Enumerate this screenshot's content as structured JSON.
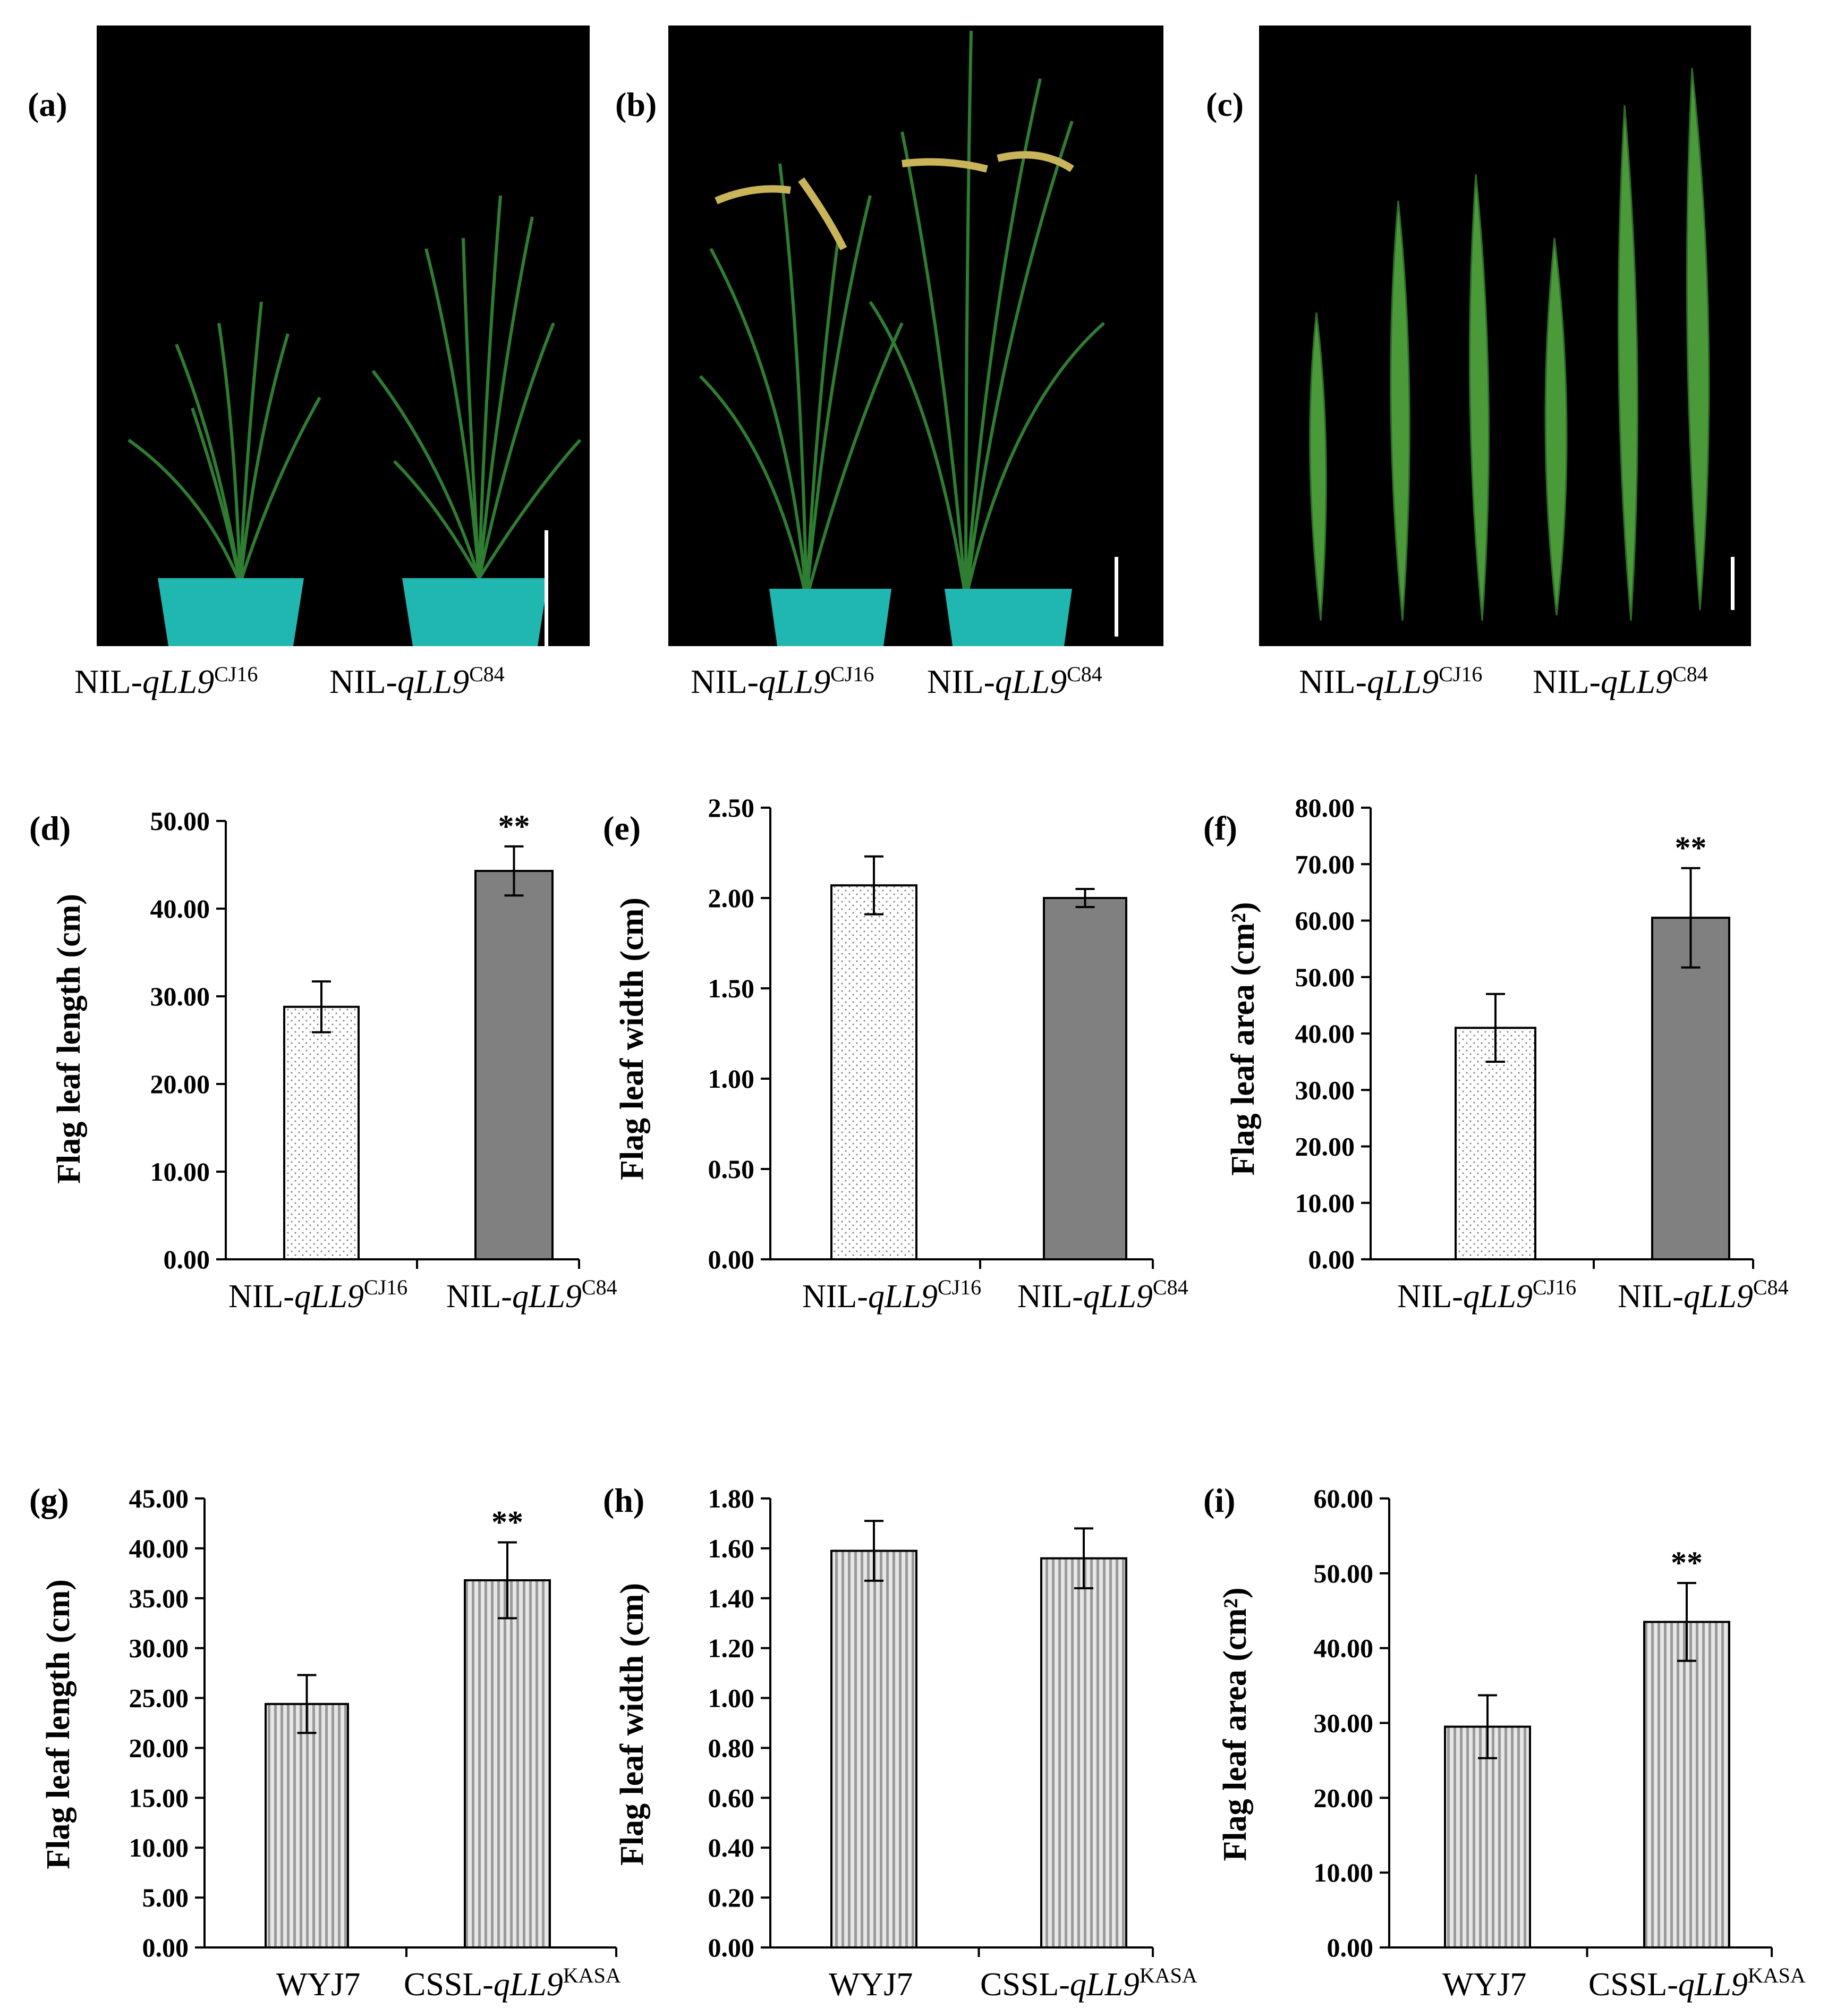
{
  "photos": [
    {
      "letter": "(a)",
      "captions": [
        {
          "base": "NIL-",
          "ital": "qLL9",
          "sup": "CJ16"
        },
        {
          "base": "NIL-",
          "ital": "qLL9",
          "sup": "C84"
        }
      ]
    },
    {
      "letter": "(b)",
      "captions": [
        {
          "base": "NIL-",
          "ital": "qLL9",
          "sup": "CJ16"
        },
        {
          "base": "NIL-",
          "ital": "qLL9",
          "sup": "C84"
        }
      ]
    },
    {
      "letter": "(c)",
      "captions": [
        {
          "base": "NIL-",
          "ital": "qLL9",
          "sup": "CJ16"
        },
        {
          "base": "NIL-",
          "ital": "qLL9",
          "sup": "C84"
        }
      ]
    }
  ],
  "colors": {
    "photo_bg": "#000000",
    "pot": "#1fb7b0",
    "leaf": "#2e7d32",
    "panicle": "#c9b45a",
    "bar_dotted": "#ffffff",
    "bar_gray": "#808080",
    "bar_striped": "#cfcfcf"
  },
  "chart_data": [
    {
      "letter": "(d)",
      "type": "bar",
      "ylabel": "Flag leaf length (cm)",
      "ylim": [
        0,
        50
      ],
      "yticks": [
        "0.00",
        "10.00",
        "20.00",
        "30.00",
        "40.00",
        "50.00"
      ],
      "categories": [
        {
          "base": "NIL-",
          "ital": "qLL9",
          "sup": "CJ16"
        },
        {
          "base": "NIL-",
          "ital": "qLL9",
          "sup": "C84"
        }
      ],
      "values": [
        28.8,
        44.3
      ],
      "errors": [
        2.9,
        2.8
      ],
      "significance": [
        "",
        "**"
      ],
      "fills": [
        "dotted",
        "gray"
      ]
    },
    {
      "letter": "(e)",
      "type": "bar",
      "ylabel": "Flag leaf width (cm)",
      "ylim": [
        0,
        2.5
      ],
      "yticks": [
        "0.00",
        "0.50",
        "1.00",
        "1.50",
        "2.00",
        "2.50"
      ],
      "categories": [
        {
          "base": "NIL-",
          "ital": "qLL9",
          "sup": "CJ16"
        },
        {
          "base": "NIL-",
          "ital": "qLL9",
          "sup": "C84"
        }
      ],
      "values": [
        2.07,
        2.0
      ],
      "errors": [
        0.16,
        0.05
      ],
      "significance": [
        "",
        ""
      ],
      "fills": [
        "dotted",
        "gray"
      ]
    },
    {
      "letter": "(f)",
      "type": "bar",
      "ylabel": "Flag leaf area (cm²)",
      "ylim": [
        0,
        80
      ],
      "yticks": [
        "0.00",
        "10.00",
        "20.00",
        "30.00",
        "40.00",
        "50.00",
        "60.00",
        "70.00",
        "80.00"
      ],
      "categories": [
        {
          "base": "NIL-",
          "ital": "qLL9",
          "sup": "CJ16"
        },
        {
          "base": "NIL-",
          "ital": "qLL9",
          "sup": "C84"
        }
      ],
      "values": [
        41.0,
        60.5
      ],
      "errors": [
        6.0,
        8.8
      ],
      "significance": [
        "",
        "**"
      ],
      "fills": [
        "dotted",
        "gray"
      ]
    },
    {
      "letter": "(g)",
      "type": "bar",
      "ylabel": "Flag leaf length (cm)",
      "ylim": [
        0,
        45
      ],
      "yticks": [
        "0.00",
        "5.00",
        "10.00",
        "15.00",
        "20.00",
        "25.00",
        "30.00",
        "35.00",
        "40.00",
        "45.00"
      ],
      "categories": [
        {
          "base": "WYJ7",
          "ital": "",
          "sup": ""
        },
        {
          "base": "CSSL-",
          "ital": "qLL9",
          "sup": "KASA"
        }
      ],
      "values": [
        24.4,
        36.8
      ],
      "errors": [
        2.9,
        3.8
      ],
      "significance": [
        "",
        "**"
      ],
      "fills": [
        "striped",
        "striped"
      ]
    },
    {
      "letter": "(h)",
      "type": "bar",
      "ylabel": "Flag leaf width (cm)",
      "ylim": [
        0,
        1.8
      ],
      "yticks": [
        "0.00",
        "0.20",
        "0.40",
        "0.60",
        "0.80",
        "1.00",
        "1.20",
        "1.40",
        "1.60",
        "1.80"
      ],
      "categories": [
        {
          "base": "WYJ7",
          "ital": "",
          "sup": ""
        },
        {
          "base": "CSSL-",
          "ital": "qLL9",
          "sup": "KASA"
        }
      ],
      "values": [
        1.59,
        1.56
      ],
      "errors": [
        0.12,
        0.12
      ],
      "significance": [
        "",
        ""
      ],
      "fills": [
        "striped",
        "striped"
      ]
    },
    {
      "letter": "(i)",
      "type": "bar",
      "ylabel": "Flag leaf area (cm²)",
      "ylim": [
        0,
        60
      ],
      "yticks": [
        "0.00",
        "10.00",
        "20.00",
        "30.00",
        "40.00",
        "50.00",
        "60.00"
      ],
      "categories": [
        {
          "base": "WYJ7",
          "ital": "",
          "sup": ""
        },
        {
          "base": "CSSL-",
          "ital": "qLL9",
          "sup": "KASA"
        }
      ],
      "values": [
        29.5,
        43.5
      ],
      "errors": [
        4.2,
        5.2
      ],
      "significance": [
        "",
        "**"
      ],
      "fills": [
        "striped",
        "striped"
      ]
    }
  ]
}
